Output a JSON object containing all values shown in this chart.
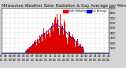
{
  "title": "Milwaukee Weather Solar Radiation & Day Average per Minute (Today)",
  "bg_color": "#d4d4d4",
  "plot_bg": "#ffffff",
  "bar_color": "#dd0000",
  "avg_color": "#0000dd",
  "legend_red_label": "Solar Radiation",
  "legend_blue_label": "Day Average",
  "xlim": [
    0,
    1440
  ],
  "ylim": [
    0,
    900
  ],
  "ytick_values": [
    100,
    200,
    300,
    400,
    500,
    600,
    700,
    800,
    900
  ],
  "grid_color": "#b0b0b0",
  "title_fontsize": 3.8,
  "tick_fontsize": 2.8,
  "bar_width": 1.0,
  "num_minutes": 1440,
  "peak_minute": 740,
  "peak_value": 870,
  "spread": 200,
  "start_minute": 330,
  "end_minute": 1110
}
